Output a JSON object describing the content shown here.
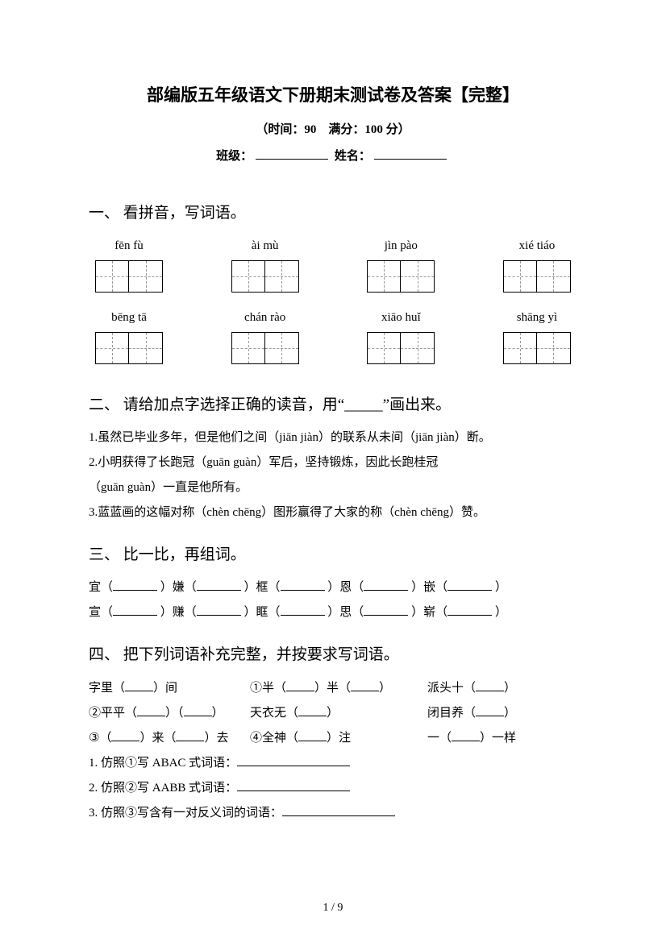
{
  "title": "部编版五年级语文下册期末测试卷及答案【完整】",
  "subtitle": "（时间：90　满分：100 分）",
  "nameline": {
    "class_label": "班级：",
    "name_label": "姓名："
  },
  "q1": {
    "head": "一、 看拼音，写词语。",
    "row1": [
      "fēn fù",
      "ài mù",
      "jìn pào",
      "xié tiáo"
    ],
    "row2": [
      "bēng tā",
      "chán rào",
      "xiāo huǐ",
      "shāng yì"
    ]
  },
  "q2": {
    "head": "二、 请给加点字选择正确的读音，用“_____”画出来。",
    "l1": "1.虽然已毕业多年，但是他们之间（jiān jiàn）的联系从未间（jiān jiàn）断。",
    "l2a": "2.小明获得了长跑冠（guān guàn）军后，坚持锻炼，因此长跑桂冠",
    "l2b": "（guān guàn）一直是他所有。",
    "l3": "3.蓝蓝画的这幅对称（chèn chēng）图形赢得了大家的称（chèn chēng）赞。"
  },
  "q3": {
    "head": "三、 比一比，再组词。",
    "row1": [
      "宜（",
      "）嫌（",
      "）框（",
      "）恩（",
      "）嵌（",
      "）"
    ],
    "row2": [
      "宣（",
      "）赚（",
      "）眶（",
      "）思（",
      "）崭（",
      "）"
    ]
  },
  "q4": {
    "head": "四、 把下列词语补充完整，并按要求写词语。",
    "r1": {
      "a1": "字里（",
      "a2": "）间",
      "b1": "①半（",
      "b2": "）半（",
      "b3": "）",
      "c1": "派头十（",
      "c2": "）"
    },
    "r2": {
      "a1": "②平平（",
      "a2": "）（",
      "a3": "）",
      "b1": "天衣无（",
      "b2": "）",
      "c1": "闭目养（",
      "c2": "）"
    },
    "r3": {
      "a1": "③（",
      "a2": "）来（",
      "a3": "）去",
      "b1": "④全神（",
      "b2": "）注",
      "c1": "一（",
      "c2": "）一样"
    },
    "s1": "1. 仿照①写 ABAC 式词语：",
    "s2": "2. 仿照②写 AABB 式词语：",
    "s3": "3. 仿照③写含有一对反义词的词语："
  },
  "footer": "1 / 9",
  "colors": {
    "text": "#000000",
    "bg": "#ffffff",
    "dashed": "#999999"
  }
}
